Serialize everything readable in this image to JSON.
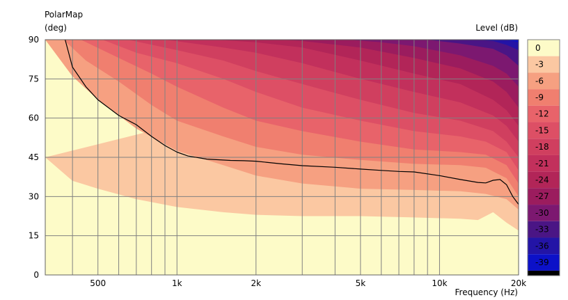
{
  "chart_data": {
    "type": "heatmap",
    "title": "PolarMap",
    "ylabel_unit": "(deg)",
    "xlabel": "Frequency  (Hz)",
    "colorbar_label": "Level  (dB)",
    "x_scale": "log",
    "xlim": [
      315,
      20000
    ],
    "ylim": [
      0,
      90
    ],
    "y_ticks": [
      0,
      15,
      30,
      45,
      60,
      75,
      90
    ],
    "x_tick_labels": [
      {
        "x": 500,
        "label": "500"
      },
      {
        "x": 1000,
        "label": "1k"
      },
      {
        "x": 2000,
        "label": "2k"
      },
      {
        "x": 5000,
        "label": "5k"
      },
      {
        "x": 10000,
        "label": "10k"
      },
      {
        "x": 20000,
        "label": "20k"
      }
    ],
    "x_gridlines": [
      400,
      500,
      600,
      700,
      800,
      900,
      1000,
      2000,
      3000,
      4000,
      5000,
      6000,
      7000,
      8000,
      9000,
      10000,
      20000
    ],
    "grid": true,
    "legend": "right colorbar",
    "levels": [
      {
        "label": "0",
        "color": "#fdfbc8"
      },
      {
        "label": "-3",
        "color": "#fbc8a2"
      },
      {
        "label": "-6",
        "color": "#f6a081"
      },
      {
        "label": "-9",
        "color": "#f07f6f"
      },
      {
        "label": "-12",
        "color": "#e8636a"
      },
      {
        "label": "-15",
        "color": "#dd4f65"
      },
      {
        "label": "-18",
        "color": "#d03f5f"
      },
      {
        "label": "-21",
        "color": "#c2305c"
      },
      {
        "label": "-24",
        "color": "#b22558"
      },
      {
        "label": "-27",
        "color": "#9b1c5e"
      },
      {
        "label": "-30",
        "color": "#7c1870"
      },
      {
        "label": "-33",
        "color": "#4a1585"
      },
      {
        "label": "-36",
        "color": "#2314a6"
      },
      {
        "label": "-39",
        "color": "#0c11c8"
      },
      {
        "label": "",
        "color": "#000000"
      }
    ],
    "contours": [
      {
        "level": "-3",
        "points": [
          [
            315,
            45
          ],
          [
            400,
            36
          ],
          [
            500,
            33
          ],
          [
            700,
            29
          ],
          [
            1000,
            26
          ],
          [
            1500,
            24
          ],
          [
            2000,
            23
          ],
          [
            3000,
            22.5
          ],
          [
            5000,
            22.5
          ],
          [
            8000,
            22
          ],
          [
            12000,
            21.5
          ],
          [
            14000,
            21
          ],
          [
            16000,
            24
          ],
          [
            18000,
            20
          ],
          [
            20000,
            17
          ]
        ]
      },
      {
        "level": "-6",
        "points": [
          [
            315,
            90
          ],
          [
            400,
            76
          ],
          [
            500,
            67
          ],
          [
            700,
            56
          ],
          [
            1000,
            47.5
          ],
          [
            1500,
            42
          ],
          [
            2000,
            38
          ],
          [
            3000,
            35
          ],
          [
            5000,
            33
          ],
          [
            8000,
            32.5
          ],
          [
            12000,
            32
          ],
          [
            15000,
            31
          ],
          [
            18000,
            29
          ],
          [
            20000,
            25
          ]
        ]
      },
      {
        "level": "-9",
        "points": [
          [
            370,
            90
          ],
          [
            450,
            82
          ],
          [
            600,
            74
          ],
          [
            800,
            65
          ],
          [
            1000,
            59
          ],
          [
            1500,
            53
          ],
          [
            2000,
            49
          ],
          [
            3000,
            46
          ],
          [
            5000,
            44
          ],
          [
            8000,
            42.5
          ],
          [
            12000,
            42
          ],
          [
            15000,
            41
          ],
          [
            18000,
            37
          ],
          [
            20000,
            30
          ]
        ]
      },
      {
        "level": "-12",
        "points": [
          [
            430,
            90
          ],
          [
            600,
            83
          ],
          [
            800,
            77
          ],
          [
            1000,
            72
          ],
          [
            1500,
            64
          ],
          [
            2000,
            59
          ],
          [
            3000,
            55
          ],
          [
            5000,
            51
          ],
          [
            8000,
            48
          ],
          [
            12000,
            47
          ],
          [
            15000,
            46
          ],
          [
            18000,
            42
          ],
          [
            20000,
            35
          ]
        ]
      },
      {
        "level": "-15",
        "points": [
          [
            520,
            90
          ],
          [
            700,
            85
          ],
          [
            1000,
            81
          ],
          [
            1500,
            75
          ],
          [
            2000,
            70
          ],
          [
            3000,
            64
          ],
          [
            5000,
            59
          ],
          [
            8000,
            55
          ],
          [
            12000,
            53
          ],
          [
            15000,
            51
          ],
          [
            18000,
            47
          ],
          [
            20000,
            40
          ]
        ]
      },
      {
        "level": "-18",
        "points": [
          [
            650,
            90
          ],
          [
            1000,
            86
          ],
          [
            1500,
            82
          ],
          [
            2000,
            78
          ],
          [
            3000,
            73
          ],
          [
            5000,
            67
          ],
          [
            8000,
            62
          ],
          [
            12000,
            59
          ],
          [
            16000,
            55
          ],
          [
            18000,
            51
          ],
          [
            20000,
            45
          ]
        ]
      },
      {
        "level": "-21",
        "points": [
          [
            900,
            90
          ],
          [
            1500,
            87
          ],
          [
            2000,
            85
          ],
          [
            3000,
            81
          ],
          [
            5000,
            75
          ],
          [
            8000,
            70
          ],
          [
            12000,
            66
          ],
          [
            16000,
            61
          ],
          [
            18000,
            57
          ],
          [
            20000,
            51
          ]
        ]
      },
      {
        "level": "-24",
        "points": [
          [
            1400,
            90
          ],
          [
            2000,
            89
          ],
          [
            3000,
            87
          ],
          [
            5000,
            82
          ],
          [
            8000,
            77
          ],
          [
            12000,
            73
          ],
          [
            16000,
            67
          ],
          [
            18000,
            63
          ],
          [
            20000,
            57
          ]
        ]
      },
      {
        "level": "-27",
        "points": [
          [
            2500,
            90
          ],
          [
            3000,
            89.5
          ],
          [
            5000,
            87
          ],
          [
            8000,
            83
          ],
          [
            12000,
            79
          ],
          [
            16000,
            74
          ],
          [
            18000,
            70
          ],
          [
            20000,
            64
          ]
        ]
      },
      {
        "level": "-30",
        "points": [
          [
            4500,
            90
          ],
          [
            6000,
            89
          ],
          [
            8000,
            87.5
          ],
          [
            12000,
            84
          ],
          [
            16000,
            80
          ],
          [
            18000,
            77
          ],
          [
            20000,
            72
          ]
        ]
      },
      {
        "level": "-33",
        "points": [
          [
            9000,
            90
          ],
          [
            12000,
            88.5
          ],
          [
            16000,
            86.5
          ],
          [
            18000,
            84
          ],
          [
            20000,
            80
          ]
        ]
      },
      {
        "level": "-36",
        "points": [
          [
            14000,
            90
          ],
          [
            16000,
            89.5
          ],
          [
            18000,
            88
          ],
          [
            20000,
            86
          ]
        ]
      },
      {
        "level": "-39",
        "points": [
          [
            18000,
            90
          ],
          [
            19000,
            89.5
          ],
          [
            20000,
            89
          ]
        ]
      }
    ],
    "series": [
      {
        "type": "line",
        "color": "#000000",
        "points": [
          [
            375,
            90
          ],
          [
            400,
            79.5
          ],
          [
            450,
            72
          ],
          [
            500,
            67
          ],
          [
            600,
            61
          ],
          [
            700,
            57.5
          ],
          [
            800,
            53
          ],
          [
            900,
            49.5
          ],
          [
            1000,
            47
          ],
          [
            1100,
            45.5
          ],
          [
            1300,
            44.3
          ],
          [
            1600,
            43.8
          ],
          [
            1800,
            43.7
          ],
          [
            2000,
            43.5
          ],
          [
            2500,
            42.5
          ],
          [
            3000,
            41.8
          ],
          [
            4000,
            41.2
          ],
          [
            5000,
            40.5
          ],
          [
            6000,
            40
          ],
          [
            7000,
            39.6
          ],
          [
            8000,
            39.4
          ],
          [
            10000,
            38
          ],
          [
            12000,
            36.5
          ],
          [
            14000,
            35.4
          ],
          [
            15000,
            35.2
          ],
          [
            16000,
            36.2
          ],
          [
            17000,
            36.5
          ],
          [
            18000,
            34.5
          ],
          [
            19000,
            30
          ],
          [
            20000,
            27
          ]
        ]
      }
    ]
  }
}
